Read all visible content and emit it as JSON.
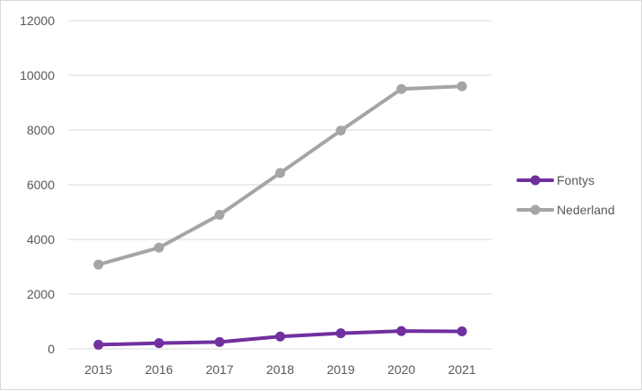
{
  "chart_data": {
    "type": "line",
    "title": "",
    "xlabel": "",
    "ylabel": "",
    "x": [
      "2015",
      "2016",
      "2017",
      "2018",
      "2019",
      "2020",
      "2021"
    ],
    "ylim": [
      0,
      12000
    ],
    "yticks": [
      "0",
      "2000",
      "4000",
      "6000",
      "8000",
      "10000",
      "12000"
    ],
    "grid": true,
    "legend_position": "right",
    "series": [
      {
        "name": "Fontys",
        "color": "#7030a0",
        "values": [
          150,
          210,
          250,
          450,
          570,
          650,
          640
        ]
      },
      {
        "name": "Nederland",
        "color": "#a5a5a5",
        "values": [
          3080,
          3700,
          4900,
          6430,
          7980,
          9500,
          9600
        ]
      }
    ]
  }
}
